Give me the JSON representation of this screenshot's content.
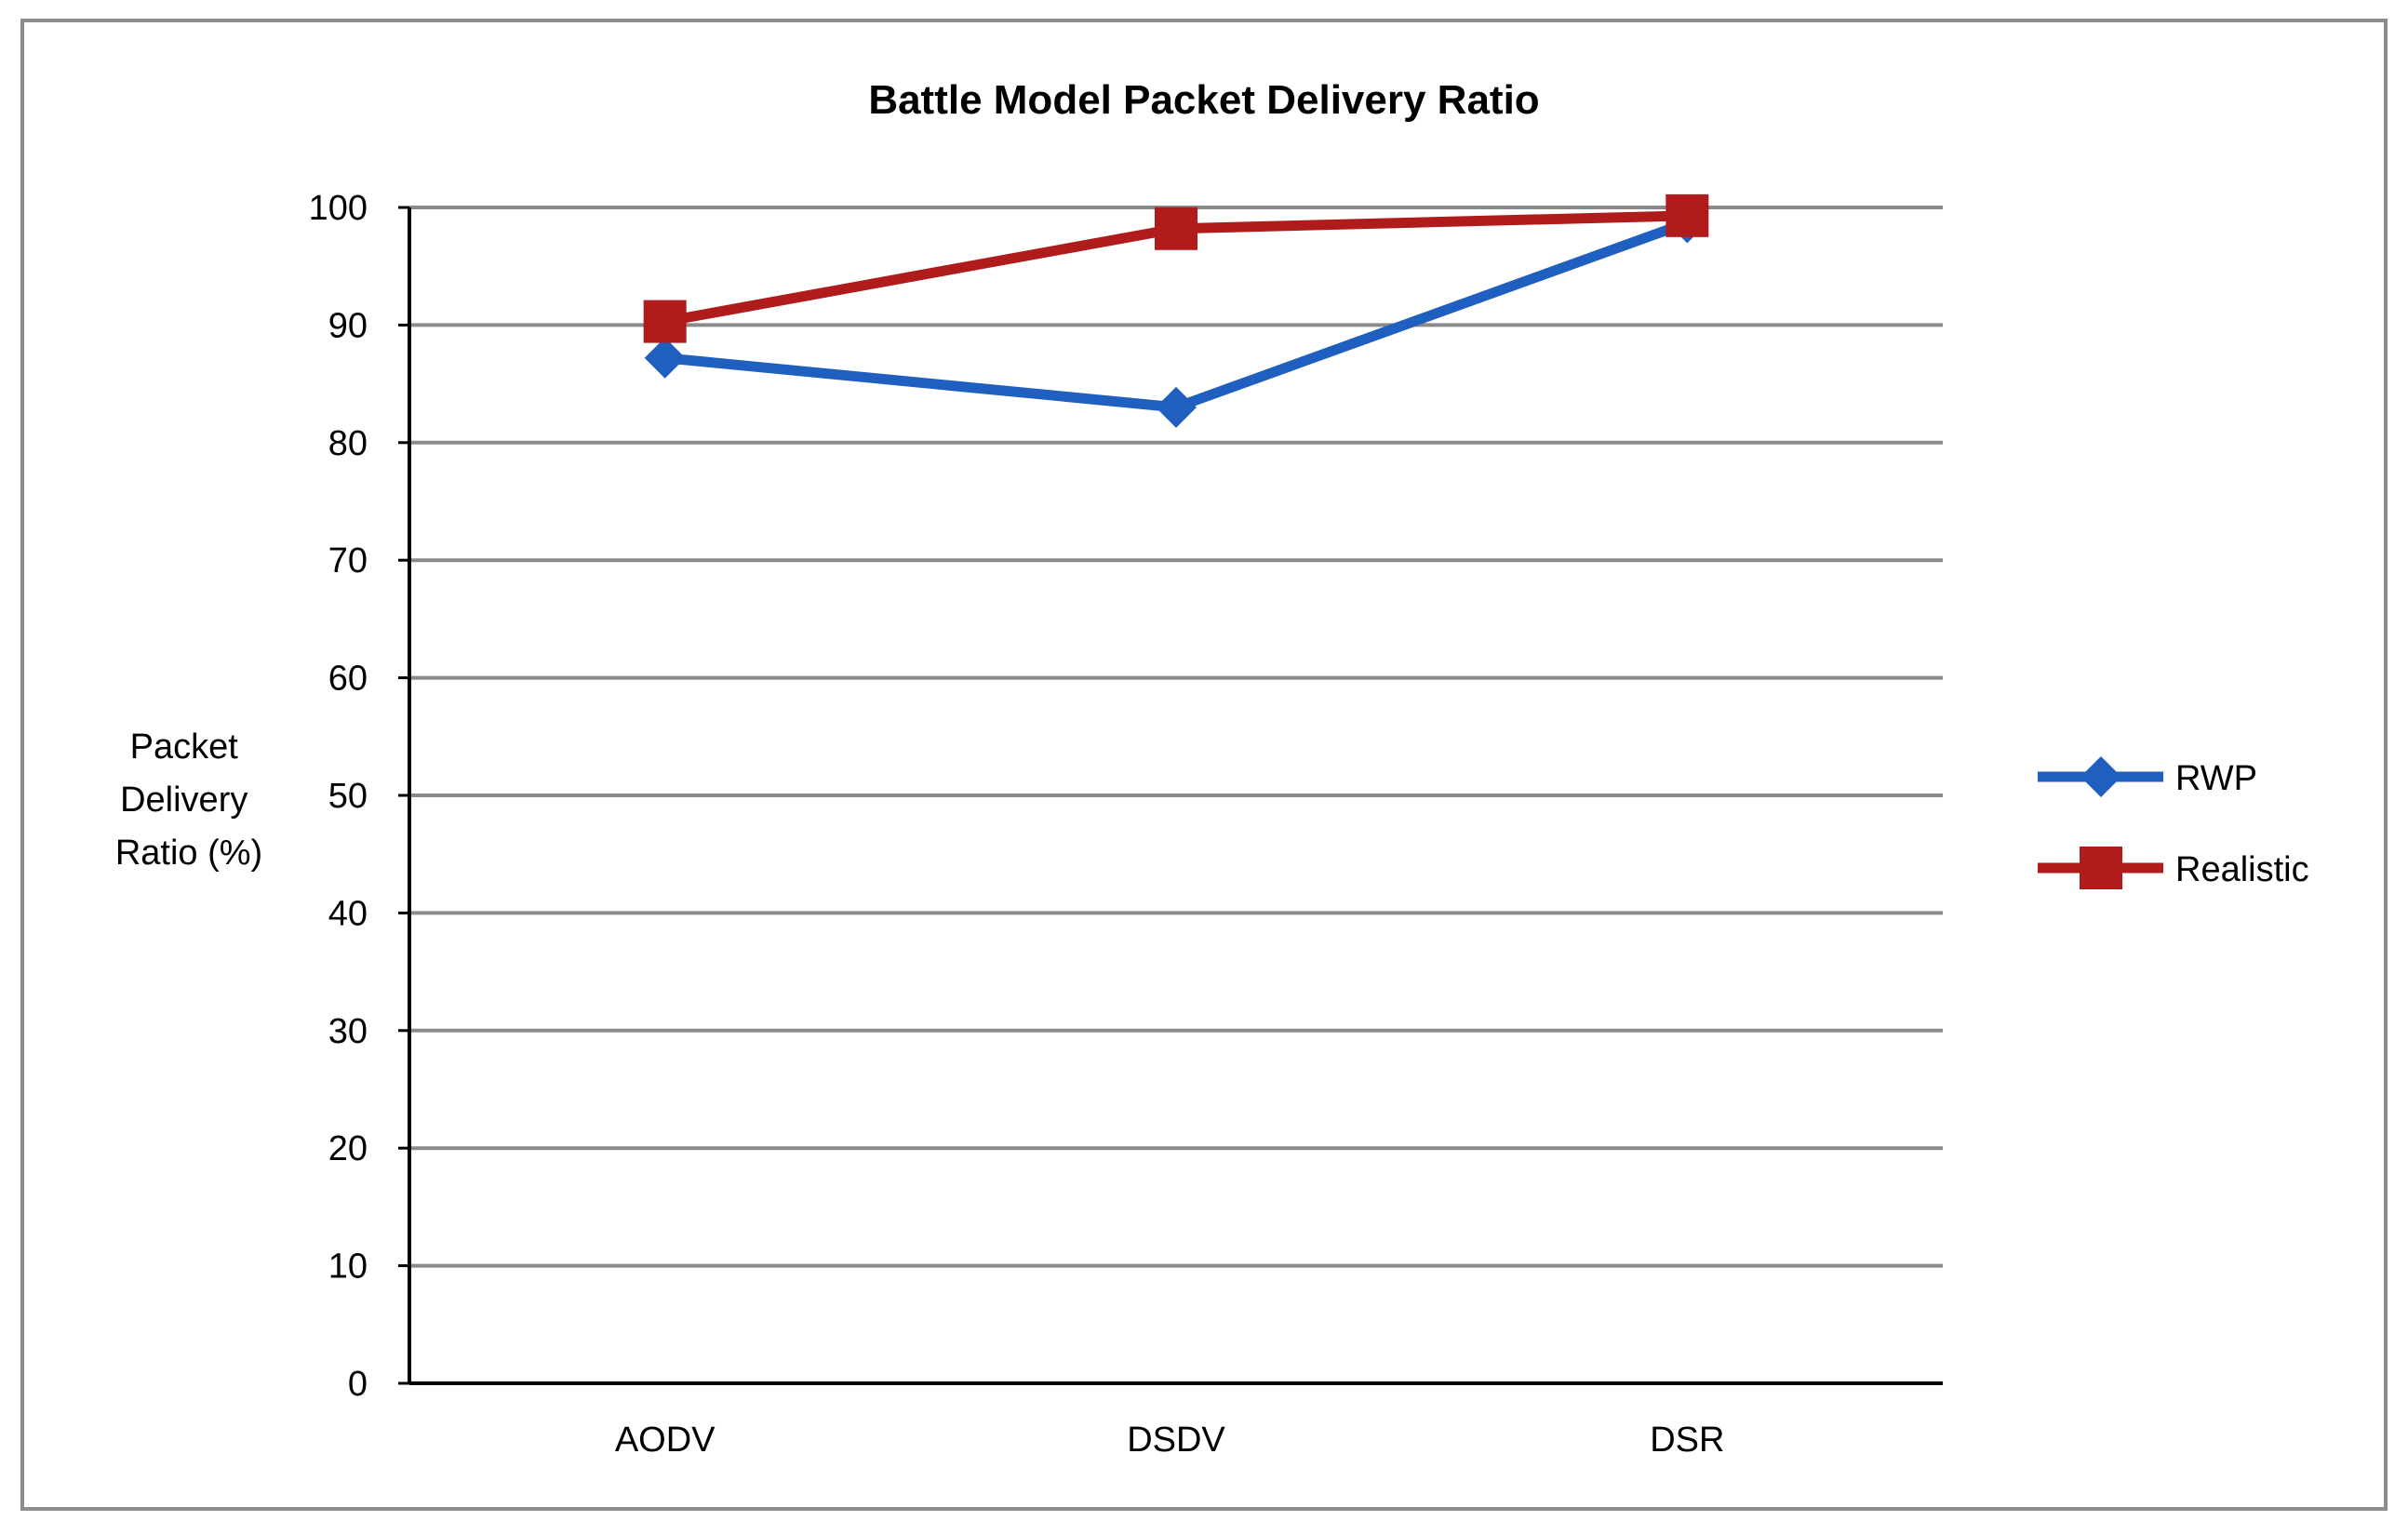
{
  "chart_data": {
    "type": "line",
    "title": "Battle Model Packet Delivery Ratio",
    "xlabel": "",
    "ylabel_lines": [
      "Packet",
      "Delivery",
      "Ratio (%)"
    ],
    "categories": [
      "AODV",
      "DSDV",
      "DSR"
    ],
    "ylim": [
      0,
      100
    ],
    "yticks": [
      0,
      10,
      20,
      30,
      40,
      50,
      60,
      70,
      80,
      90,
      100
    ],
    "grid": true,
    "legend_position": "right",
    "series": [
      {
        "name": "RWP",
        "values": [
          87.2,
          83,
          98.7
        ],
        "color": "#1f5fbf",
        "marker": "diamond"
      },
      {
        "name": "Realistic",
        "values": [
          90.3,
          98.2,
          99.3
        ],
        "color": "#b01c1c",
        "marker": "square"
      }
    ]
  }
}
